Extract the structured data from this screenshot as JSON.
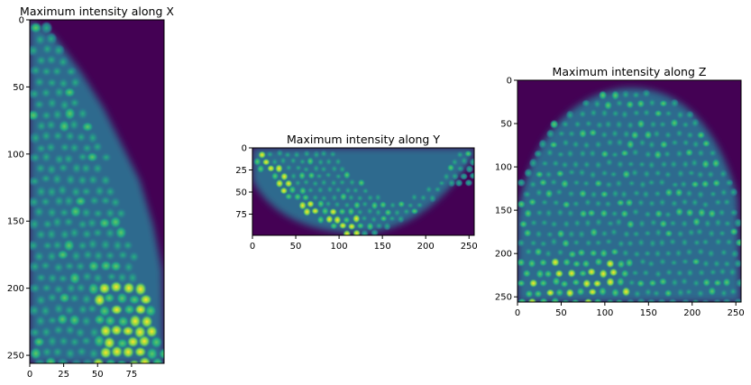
{
  "chart_data": [
    {
      "type": "heatmap",
      "title": "Maximum intensity along X",
      "xlabel": "",
      "ylabel": "",
      "xlim": [
        0,
        99
      ],
      "ylim": [
        256,
        0
      ],
      "xticks": [
        0,
        25,
        50,
        75
      ],
      "yticks": [
        0,
        50,
        100,
        150,
        200,
        250
      ],
      "colormap": "viridis",
      "content": "cells-right-edge"
    },
    {
      "type": "heatmap",
      "title": "Maximum intensity along Y",
      "xlabel": "",
      "ylabel": "",
      "xlim": [
        0,
        256
      ],
      "ylim": [
        99,
        0
      ],
      "xticks": [
        0,
        50,
        100,
        150,
        200,
        250
      ],
      "yticks": [
        0,
        25,
        50,
        75
      ],
      "colormap": "viridis",
      "content": "cells-bowl"
    },
    {
      "type": "heatmap",
      "title": "Maximum intensity along Z",
      "xlabel": "",
      "ylabel": "",
      "xlim": [
        0,
        256
      ],
      "ylim": [
        256,
        0
      ],
      "xticks": [
        0,
        50,
        100,
        150,
        200,
        250
      ],
      "yticks": [
        0,
        50,
        100,
        150,
        200,
        250
      ],
      "colormap": "viridis",
      "content": "cells-dome"
    }
  ],
  "colors": {
    "background_dark": "#440154",
    "mid": "#31688e",
    "teal": "#21918c",
    "green": "#5ec962",
    "bright": "#fde725"
  }
}
